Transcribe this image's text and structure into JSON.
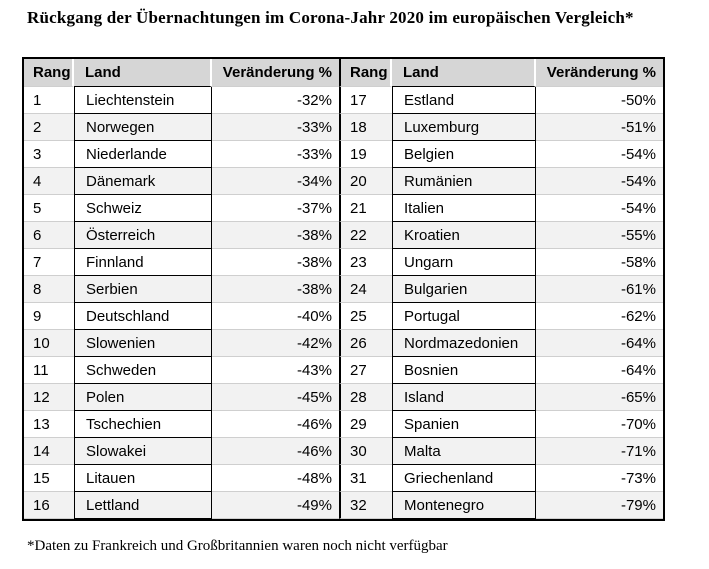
{
  "page": {
    "title": "Rückgang der Übernachtungen im Corona-Jahr 2020 im europäischen Vergleich*",
    "footnote": "*Daten zu Frankreich und Großbritannien waren noch nicht verfügbar"
  },
  "table": {
    "headers": [
      "Rang",
      "Land",
      "Veränderung %",
      "Rang",
      "Land",
      "Veränderung %"
    ],
    "rows": [
      [
        "1",
        "Liechtenstein",
        "-32%",
        "17",
        "Estland",
        "-50%"
      ],
      [
        "2",
        "Norwegen",
        "-33%",
        "18",
        "Luxemburg",
        "-51%"
      ],
      [
        "3",
        "Niederlande",
        "-33%",
        "19",
        "Belgien",
        "-54%"
      ],
      [
        "4",
        "Dänemark",
        "-34%",
        "20",
        "Rumänien",
        "-54%"
      ],
      [
        "5",
        "Schweiz",
        "-37%",
        "21",
        "Italien",
        "-54%"
      ],
      [
        "6",
        "Österreich",
        "-38%",
        "22",
        "Kroatien",
        "-55%"
      ],
      [
        "7",
        "Finnland",
        "-38%",
        "23",
        "Ungarn",
        "-58%"
      ],
      [
        "8",
        "Serbien",
        "-38%",
        "24",
        "Bulgarien",
        "-61%"
      ],
      [
        "9",
        "Deutschland",
        "-40%",
        "25",
        "Portugal",
        "-62%"
      ],
      [
        "10",
        "Slowenien",
        "-42%",
        "26",
        "Nordmazedonien",
        "-64%"
      ],
      [
        "11",
        "Schweden",
        "-43%",
        "27",
        "Bosnien",
        "-64%"
      ],
      [
        "12",
        "Polen",
        "-45%",
        "28",
        "Island",
        "-65%"
      ],
      [
        "13",
        "Tschechien",
        "-46%",
        "29",
        "Spanien",
        "-70%"
      ],
      [
        "14",
        "Slowakei",
        "-46%",
        "30",
        "Malta",
        "-71%"
      ],
      [
        "15",
        "Litauen",
        "-48%",
        "31",
        "Griechenland",
        "-73%"
      ],
      [
        "16",
        "Lettland",
        "-49%",
        "32",
        "Montenegro",
        "-79%"
      ]
    ]
  },
  "colors": {
    "header_bg": "#d6d6d6",
    "alt_row_bg": "#f2f2f2",
    "table_border": "#000000",
    "gridline_gray": "#cfcfcf"
  }
}
